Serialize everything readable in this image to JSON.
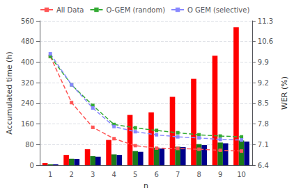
{
  "chart_data": {
    "type": "bar",
    "xlabel": "n",
    "ylabel": "Accumulated time (h)",
    "y2label": "WER (%)",
    "categories": [
      "1",
      "2",
      "3",
      "4",
      "5",
      "6",
      "7",
      "8",
      "9",
      "10"
    ],
    "series": [
      {
        "type": "bar",
        "color": "#ff0000",
        "values": [
          8,
          40,
          62,
          98,
          195,
          205,
          265,
          335,
          425,
          535
        ]
      },
      {
        "type": "bar",
        "color": "#1a7a1a",
        "values": [
          4,
          25,
          35,
          42,
          55,
          68,
          72,
          82,
          88,
          96
        ]
      },
      {
        "type": "bar",
        "color": "#00008b",
        "values": [
          4,
          24,
          33,
          40,
          52,
          65,
          70,
          78,
          85,
          92
        ]
      },
      {
        "type": "line",
        "name": "All Data",
        "color": "#ff5555",
        "line_style": "dashed",
        "marker": "square",
        "values": [
          422,
          243,
          147,
          103,
          76,
          66,
          65,
          62,
          58,
          55
        ]
      },
      {
        "type": "line",
        "name": "O-GEM (random)",
        "color": "#33aa33",
        "line_style": "dashed",
        "marker": "square",
        "values": [
          422,
          312,
          232,
          158,
          145,
          135,
          126,
          118,
          113,
          110
        ]
      },
      {
        "type": "line",
        "name": "O GEM (selective)",
        "color": "#8888ff",
        "line_style": "dashed",
        "marker": "square",
        "values": [
          432,
          312,
          222,
          150,
          130,
          118,
          110,
          106,
          100,
          98
        ]
      }
    ],
    "ylim": [
      0,
      560
    ],
    "yticks": [
      0,
      80,
      160,
      240,
      320,
      400,
      480,
      560
    ],
    "y2lim": [
      6.4,
      11.3
    ],
    "y2ticks": [
      6.4,
      7.1,
      7.8,
      8.5,
      9.2,
      9.9,
      10.6,
      11.3
    ],
    "grid": true,
    "legend": "upper left"
  }
}
